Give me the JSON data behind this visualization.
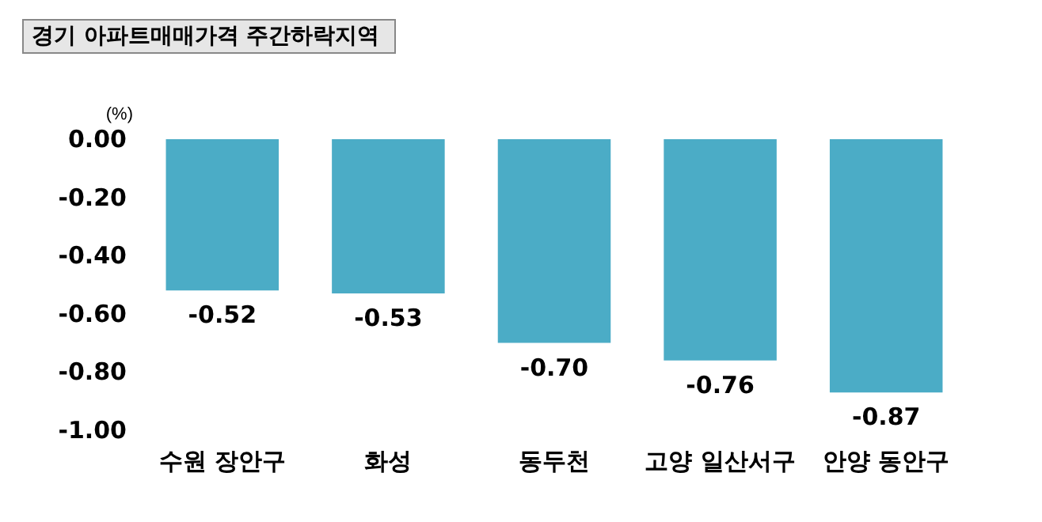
{
  "chart_data": {
    "type": "bar",
    "title": "경기 아파트매매가격 주간하락지역",
    "ylabel": "(%)",
    "categories": [
      "수원 장안구",
      "화성",
      "동두천",
      "고양 일산서구",
      "안양 동안구"
    ],
    "values": [
      -0.52,
      -0.53,
      -0.7,
      -0.76,
      -0.87
    ],
    "value_labels": [
      "-0.52",
      "-0.53",
      "-0.70",
      "-0.76",
      "-0.87"
    ],
    "color": "#4bacc6",
    "ylim": [
      -1,
      0
    ],
    "yticks": [
      {
        "value": 0,
        "label": "0.00"
      },
      {
        "value": -0.2,
        "label": "-0.20"
      },
      {
        "value": -0.4,
        "label": "-0.40"
      },
      {
        "value": -0.6,
        "label": "-0.60"
      },
      {
        "value": -0.8,
        "label": "-0.80"
      },
      {
        "value": -1,
        "label": "-1.00"
      }
    ],
    "grid": false
  }
}
